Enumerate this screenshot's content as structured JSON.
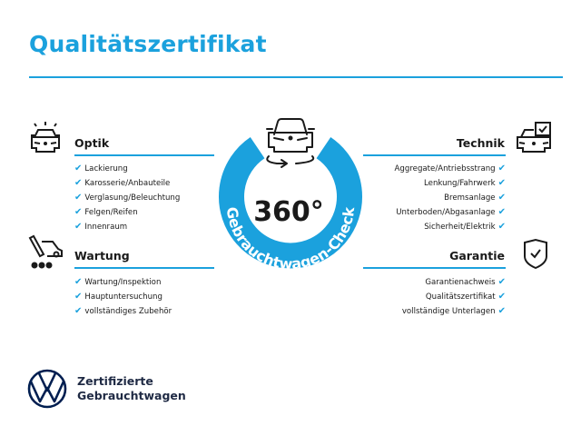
{
  "title": "Qualitätszertifikat",
  "badge": {
    "degrees": "360°",
    "arc_text": "Gebrauchtwagen-Check",
    "color": "#1ba1dd"
  },
  "sections": {
    "optik": {
      "title": "Optik",
      "icon": "car-lights-icon",
      "items": [
        "Lackierung",
        "Karosserie/Anbauteile",
        "Verglasung/Beleuchtung",
        "Felgen/Reifen",
        "Innenraum"
      ]
    },
    "wartung": {
      "title": "Wartung",
      "icon": "service-tools-icon",
      "items": [
        "Wartung/Inspektion",
        "Hauptuntersuchung",
        "vollständiges Zubehör"
      ]
    },
    "technik": {
      "title": "Technik",
      "icon": "car-checklist-icon",
      "items": [
        "Aggregate/Antriebsstrang",
        "Lenkung/Fahrwerk",
        "Bremsanlage",
        "Unterboden/Abgasanlage",
        "Sicherheit/Elektrik"
      ]
    },
    "garantie": {
      "title": "Garantie",
      "icon": "shield-check-icon",
      "items": [
        "Garantienachweis",
        "Qualitätszertifikat",
        "vollständige Unterlagen"
      ]
    }
  },
  "check_mark": "✔",
  "footer": {
    "line1": "Zertifizierte",
    "line2": "Gebrauchtwagen",
    "brand_color": "#001e50"
  }
}
